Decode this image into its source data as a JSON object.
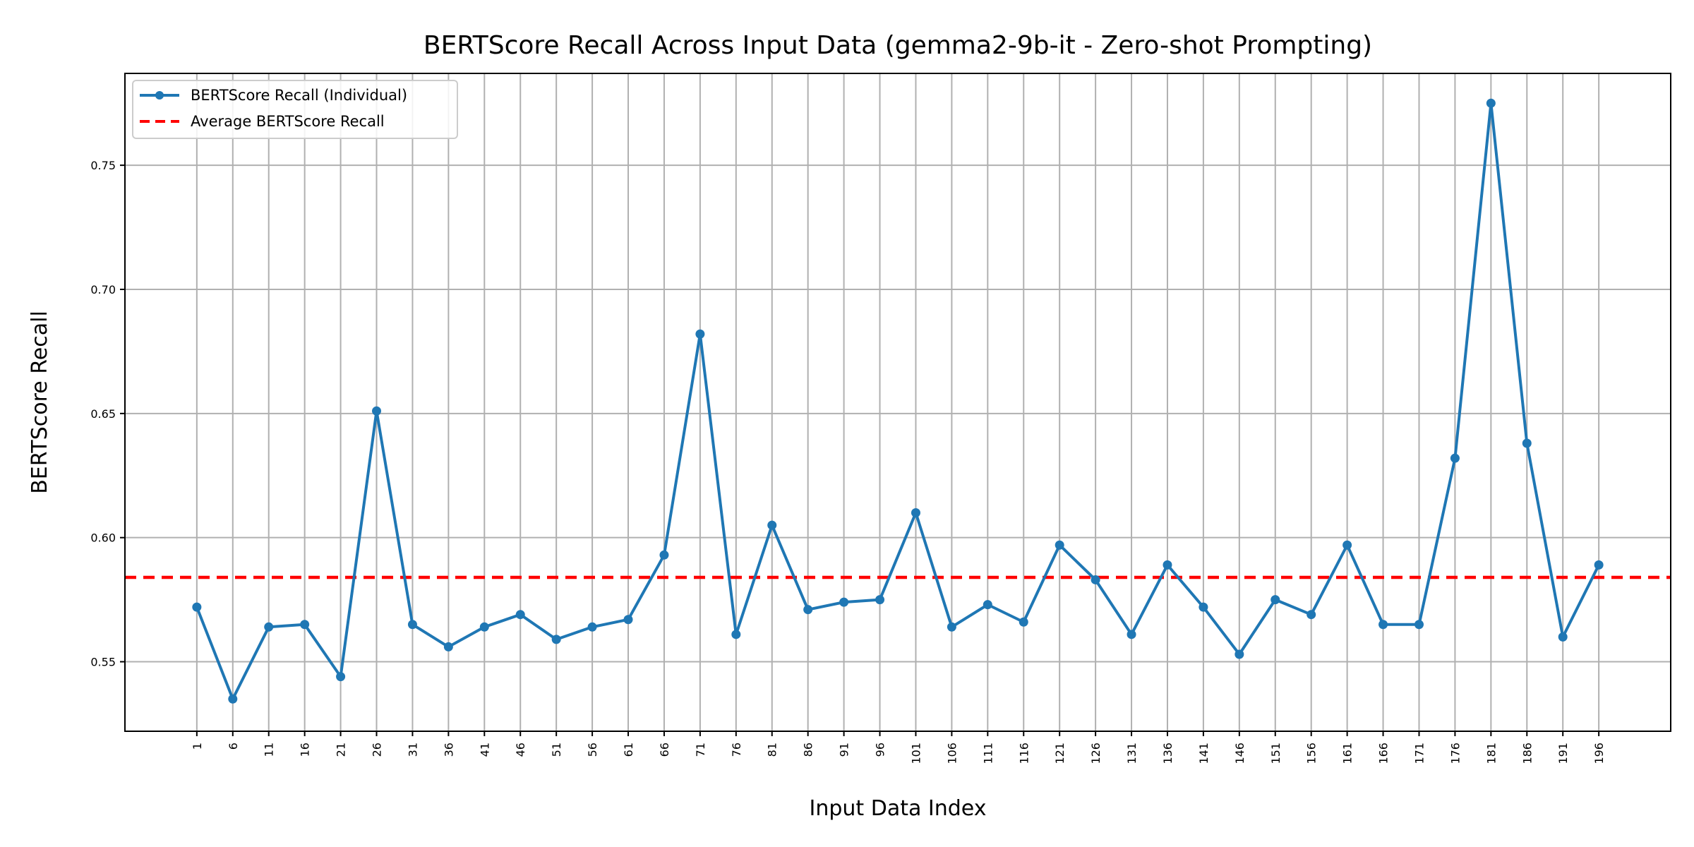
{
  "chart_data": {
    "type": "line",
    "title": "BERTScore Recall Across Input Data (gemma2-9b-it - Zero-shot Prompting)",
    "xlabel": "Input Data Index",
    "ylabel": "BERTScore Recall",
    "x": [
      1,
      6,
      11,
      16,
      21,
      26,
      31,
      36,
      41,
      46,
      51,
      56,
      61,
      66,
      71,
      76,
      81,
      86,
      91,
      96,
      101,
      106,
      111,
      116,
      121,
      126,
      131,
      136,
      141,
      146,
      151,
      156,
      161,
      166,
      171,
      176,
      181,
      186,
      191,
      196
    ],
    "xlim": [
      -9,
      206
    ],
    "ylim": [
      0.522,
      0.787
    ],
    "yticks": [
      0.55,
      0.6,
      0.65,
      0.7,
      0.75
    ],
    "ytick_labels": [
      "0.55",
      "0.60",
      "0.65",
      "0.70",
      "0.75"
    ],
    "grid": true,
    "legend_position": "top-left",
    "series": [
      {
        "name": "BERTScore Recall (Individual)",
        "color": "#1f77b4",
        "style": "solid-with-markers",
        "values": [
          0.572,
          0.535,
          0.564,
          0.565,
          0.544,
          0.651,
          0.565,
          0.556,
          0.564,
          0.569,
          0.559,
          0.564,
          0.567,
          0.593,
          0.682,
          0.561,
          0.605,
          0.571,
          0.574,
          0.575,
          0.61,
          0.564,
          0.573,
          0.566,
          0.597,
          0.583,
          0.561,
          0.589,
          0.572,
          0.553,
          0.575,
          0.569,
          0.597,
          0.565,
          0.565,
          0.632,
          0.775,
          0.638,
          0.56,
          0.589
        ]
      },
      {
        "name": "Average BERTScore Recall",
        "color": "#ff0000",
        "style": "dashed",
        "value": 0.584
      }
    ]
  }
}
